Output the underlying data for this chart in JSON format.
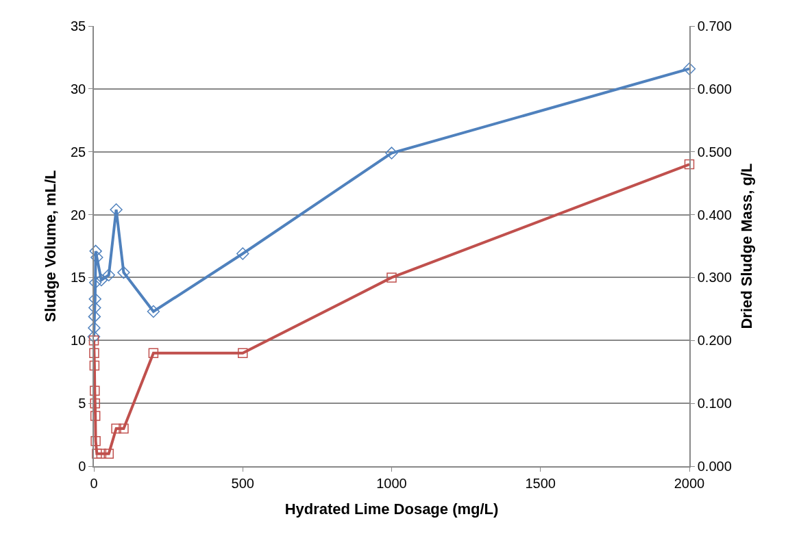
{
  "chart_data": {
    "type": "line",
    "xlabel": "Hydrated Lime Dosage (mg/L)",
    "ylabel": "Sludge Volume, mL/L",
    "y2label": "Dried Sludge Mass, g/L",
    "x": [
      0,
      1,
      2,
      3,
      4,
      5,
      6,
      10,
      25,
      50,
      75,
      100,
      200,
      500,
      1000,
      2000
    ],
    "series": [
      {
        "color": "#4f81bd",
        "marker": "diamond",
        "values": [
          10.3,
          11.0,
          11.9,
          12.6,
          13.3,
          14.6,
          17.1,
          16.6,
          14.8,
          15.2,
          20.4,
          15.4,
          12.3,
          16.9,
          24.9,
          31.6
        ]
      },
      {
        "color": "#c0504d",
        "marker": "square",
        "axis": "y2",
        "values": [
          0.2,
          0.18,
          0.16,
          0.12,
          0.1,
          0.08,
          0.04,
          0.02,
          0.02,
          0.02,
          0.06,
          0.06,
          0.18,
          0.18,
          0.3,
          0.48
        ]
      }
    ],
    "xlim": [
      0,
      2000
    ],
    "xticks": [
      0,
      500,
      1000,
      1500,
      2000
    ],
    "ylim": [
      0,
      35
    ],
    "yticks": [
      0,
      5,
      10,
      15,
      20,
      25,
      30,
      35
    ],
    "y2lim": [
      0,
      0.7
    ],
    "y2ticks": [
      {
        "value": 0,
        "label": "0.000"
      },
      {
        "value": 0.1,
        "label": "0.100"
      },
      {
        "value": 0.2,
        "label": "0.200"
      },
      {
        "value": 0.3,
        "label": "0.300"
      },
      {
        "value": 0.4,
        "label": "0.400"
      },
      {
        "value": 0.5,
        "label": "0.500"
      },
      {
        "value": 0.6,
        "label": "0.600"
      },
      {
        "value": 0.7,
        "label": "0.700"
      }
    ],
    "grid": "y",
    "line_style": "solid"
  }
}
